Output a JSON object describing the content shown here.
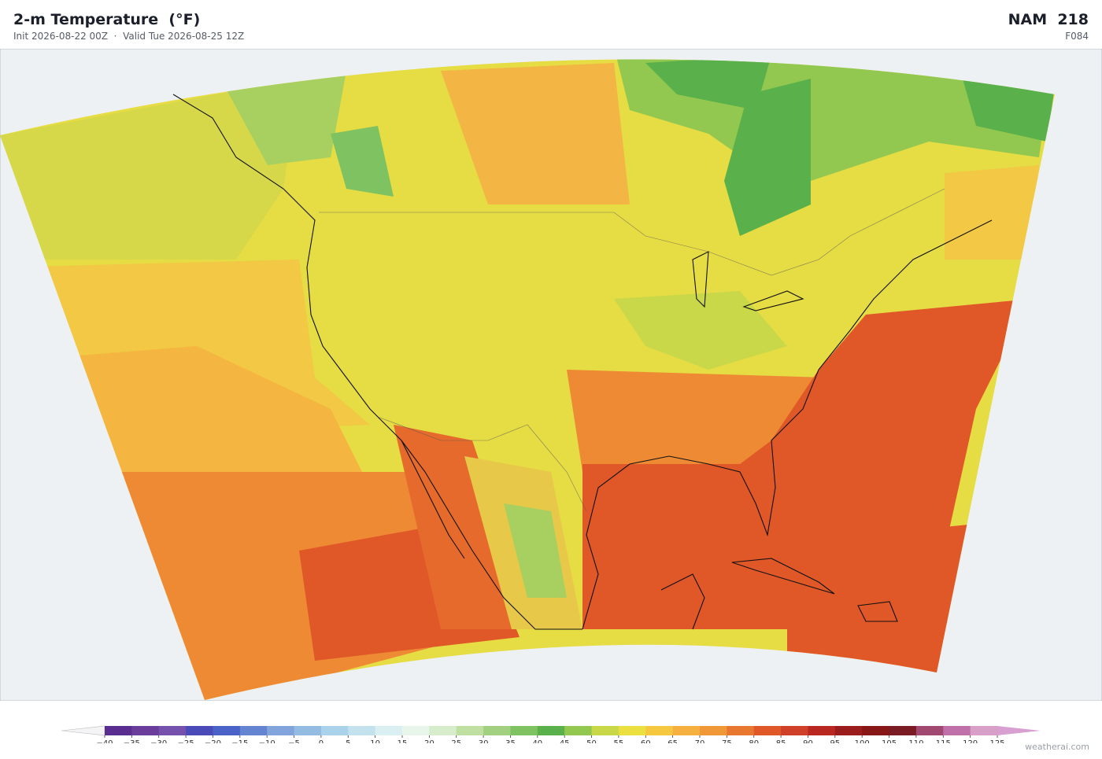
{
  "header": {
    "title": "2-m Temperature  (°F)",
    "subtitle": "Init 2026-08-22 00Z  ·  Valid Tue 2026-08-25 12Z",
    "model": "NAM  218",
    "forecast_hour": "F084"
  },
  "colorbar": {
    "ticks": [
      {
        "value": -40,
        "label": "−40"
      },
      {
        "value": -35,
        "label": "−35"
      },
      {
        "value": -30,
        "label": "−30"
      },
      {
        "value": -25,
        "label": "−25"
      },
      {
        "value": -20,
        "label": "−20"
      },
      {
        "value": -15,
        "label": "−15"
      },
      {
        "value": -10,
        "label": "−10"
      },
      {
        "value": -5,
        "label": "−5"
      },
      0,
      5,
      10,
      15,
      20,
      25,
      30,
      35,
      40,
      45,
      50,
      55,
      60,
      65,
      70,
      75,
      80,
      85,
      90,
      95,
      100,
      105,
      110,
      115,
      120,
      125
    ],
    "colors": [
      "#5a2d91",
      "#6a3d9a",
      "#7550ac",
      "#4a4ab8",
      "#4a62c8",
      "#6484d2",
      "#82a4da",
      "#94bce2",
      "#aad2ea",
      "#c4e2ee",
      "#daeff2",
      "#e8f5ea",
      "#d6eccb",
      "#bfe0a0",
      "#a0d080",
      "#7ec262",
      "#5ab04a",
      "#92c850",
      "#c8d848",
      "#ece040",
      "#f5c840",
      "#f5b040",
      "#f09838",
      "#e87830",
      "#e05828",
      "#d04028",
      "#b82820",
      "#9a1c1c",
      "#881818",
      "#7a1a22",
      "#a04870",
      "#c070a8",
      "#d8a0c8"
    ],
    "under_color": "#f4f4f6",
    "over_color": "#d8a0d0"
  },
  "credit": "weatherai.com"
}
